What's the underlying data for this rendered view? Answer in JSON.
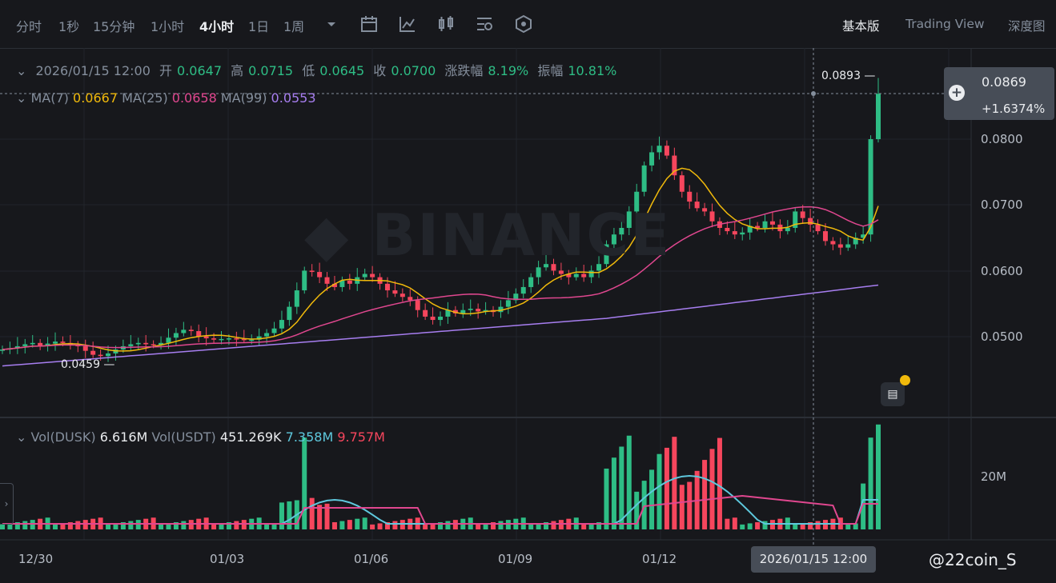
{
  "toolbar": {
    "timeframes": [
      "分时",
      "1秒",
      "15分钟",
      "1小时",
      "4小时",
      "1日",
      "1周"
    ],
    "active_timeframe": "4小时",
    "views": {
      "basic": "基本版",
      "tradingview": "Trading View",
      "depth": "深度图"
    },
    "active_view": "基本版",
    "icons": [
      "more-dropdown-icon",
      "calendar-icon",
      "indicator-icon",
      "candle-type-icon",
      "settings-icon",
      "shield-icon"
    ]
  },
  "ohlc": {
    "date": "2026/01/15 12:00",
    "open_label": "开",
    "open": "0.0647",
    "high_label": "高",
    "high": "0.0715",
    "low_label": "低",
    "low": "0.0645",
    "close_label": "收",
    "close": "0.0700",
    "change_label": "涨跌幅",
    "change": "8.19%",
    "amp_label": "振幅",
    "amp": "10.81%"
  },
  "ma": {
    "ma7_label": "MA(7)",
    "ma7": "0.0667",
    "ma25_label": "MA(25)",
    "ma25": "0.0658",
    "ma99_label": "MA(99)",
    "ma99": "0.0553"
  },
  "vol": {
    "dusk_label": "Vol(DUSK)",
    "dusk": "6.616M",
    "usdt_label": "Vol(USDT)",
    "usdt": "451.269K",
    "ma1": "7.358M",
    "ma2": "9.757M"
  },
  "price_tag": {
    "price": "0.0869",
    "change": "+1.6374%"
  },
  "annotations": {
    "high": "0.0893 —",
    "low": "0.0459 —"
  },
  "y_axis": [
    "0.0800",
    "0.0700",
    "0.0600",
    "0.0500"
  ],
  "vol_axis": [
    "20M"
  ],
  "x_axis": [
    "12/30",
    "01/03",
    "01/06",
    "01/09",
    "01/12"
  ],
  "crosshair_time": "2026/01/15 12:00",
  "watermark_brand": "BINANCE",
  "watermark_user": "@22coin_S",
  "colors": {
    "up": "#2ebd85",
    "down": "#f6465d",
    "ma7": "#f0b90b",
    "ma25": "#e0478f",
    "ma99": "#a77ef0",
    "bg": "#17181c"
  },
  "chart_data": {
    "type": "candlestick",
    "pair": "DUSK/USDT",
    "interval": "4h",
    "x_labels": [
      "12/30",
      "01/03",
      "01/06",
      "01/09",
      "01/12"
    ],
    "ylim": [
      0.042,
      0.09
    ],
    "closes": [
      0.048,
      0.0482,
      0.0485,
      0.0488,
      0.049,
      0.0486,
      0.0489,
      0.0492,
      0.049,
      0.0487,
      0.0485,
      0.0478,
      0.0472,
      0.047,
      0.0474,
      0.048,
      0.0485,
      0.0488,
      0.049,
      0.0488,
      0.0487,
      0.049,
      0.0498,
      0.0505,
      0.051,
      0.0508,
      0.05,
      0.0497,
      0.0495,
      0.0496,
      0.0497,
      0.0496,
      0.0495,
      0.0495,
      0.05,
      0.0505,
      0.0512,
      0.0525,
      0.0545,
      0.057,
      0.06,
      0.0598,
      0.059,
      0.058,
      0.0575,
      0.0585,
      0.058,
      0.059,
      0.0595,
      0.059,
      0.058,
      0.057,
      0.0565,
      0.056,
      0.0555,
      0.054,
      0.053,
      0.0525,
      0.053,
      0.054,
      0.0535,
      0.054,
      0.0542,
      0.0538,
      0.054,
      0.0537,
      0.0545,
      0.0555,
      0.0565,
      0.0575,
      0.059,
      0.0605,
      0.061,
      0.06,
      0.0595,
      0.059,
      0.0595,
      0.059,
      0.06,
      0.061,
      0.064,
      0.0655,
      0.0665,
      0.069,
      0.072,
      0.076,
      0.078,
      0.079,
      0.0775,
      0.0745,
      0.072,
      0.0705,
      0.0695,
      0.069,
      0.0675,
      0.0665,
      0.066,
      0.0655,
      0.0658,
      0.0668,
      0.0665,
      0.0675,
      0.067,
      0.066,
      0.0665,
      0.069,
      0.068,
      0.067,
      0.066,
      0.0645,
      0.064,
      0.0635,
      0.064,
      0.065,
      0.0655,
      0.08,
      0.0869
    ],
    "volume_peak": "26M"
  }
}
